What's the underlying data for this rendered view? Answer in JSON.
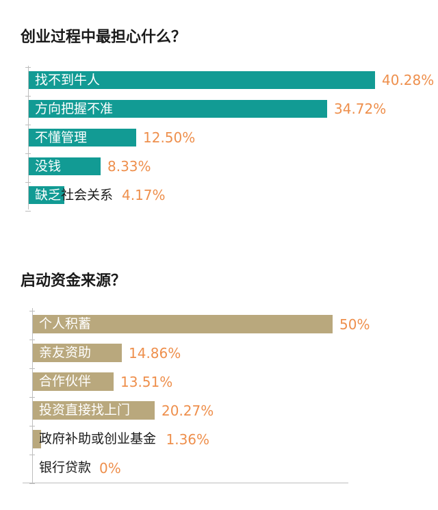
{
  "chart_data": [
    {
      "type": "bar",
      "orientation": "horizontal",
      "title": "创业过程中最担心什么？",
      "color": "#129b94",
      "value_color": "#ee8f4c",
      "categories": [
        "找不到牛人",
        "方向把握不准",
        "不懂管理",
        "没钱",
        "缺乏社会关系"
      ],
      "values": [
        40.28,
        34.72,
        12.5,
        8.33,
        4.17
      ],
      "value_labels": [
        "40.28%",
        "34.72%",
        "12.50%",
        "8.33%",
        "4.17%"
      ],
      "xlim": [
        0,
        40.28
      ]
    },
    {
      "type": "bar",
      "orientation": "horizontal",
      "title": "启动资金来源？",
      "color": "#b9a87d",
      "value_color": "#ee8f4c",
      "categories": [
        "个人积蓄",
        "亲友资助",
        "合作伙伴",
        "投资直接找上门",
        "政府补助或创业基金",
        "银行贷款"
      ],
      "values": [
        50,
        14.86,
        13.51,
        20.27,
        1.36,
        0
      ],
      "value_labels": [
        "50%",
        "14.86%",
        "13.51%",
        "20.27%",
        "1.36%",
        "0%"
      ],
      "xlim": [
        0,
        50
      ]
    }
  ]
}
